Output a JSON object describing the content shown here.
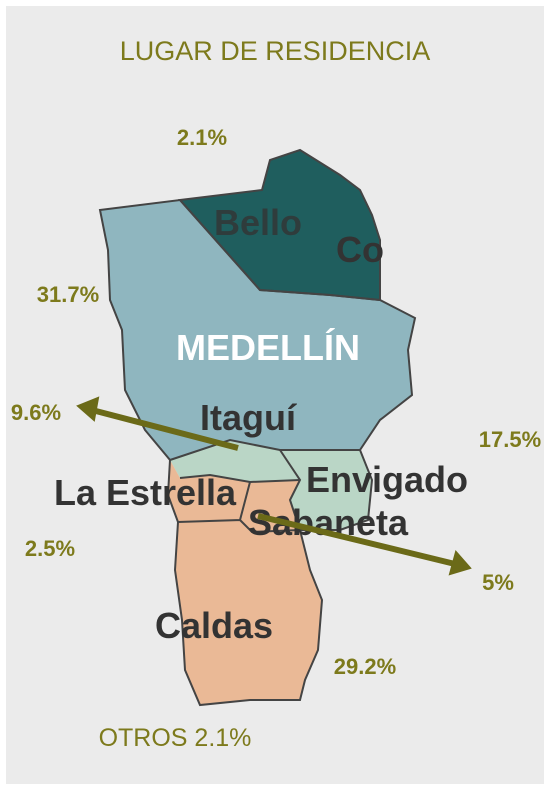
{
  "title": "LUGAR DE RESIDENCIA",
  "regions": [
    {
      "name": "Bello"
    },
    {
      "name": "Co"
    },
    {
      "name": "MEDELLÍN"
    },
    {
      "name": "Itaguí"
    },
    {
      "name": "La Estrella"
    },
    {
      "name": "Envigado"
    },
    {
      "name": "Sabaneta"
    },
    {
      "name": "Caldas"
    }
  ],
  "percentages": [
    "2.1%",
    "31.7%",
    "9.6%",
    "17.5%",
    "2.5%",
    "5%",
    "29.2%"
  ],
  "footer": "OTROS 2.1%"
}
